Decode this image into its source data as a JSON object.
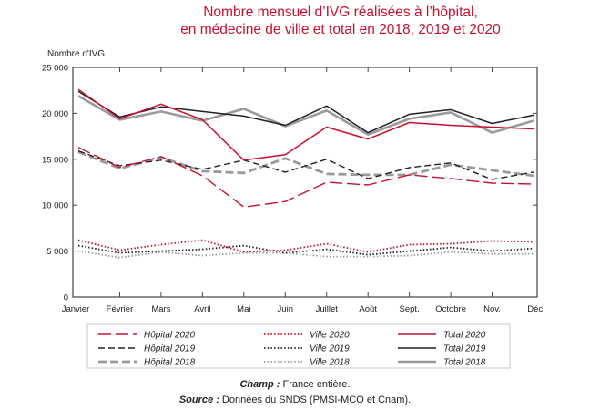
{
  "chart_data": {
    "type": "line",
    "title": [
      "Nombre mensuel d’IVG réalisées à l’hôpital,",
      "en médecine de ville et total en 2018, 2019 et 2020"
    ],
    "ylabel": "Nombre d'IVG",
    "xlabel": "",
    "ylim": [
      0,
      25000
    ],
    "yticks": [
      0,
      5000,
      10000,
      15000,
      20000,
      25000
    ],
    "ytick_labels": [
      "0",
      "5 000",
      "10 000",
      "15 000",
      "20 000",
      "25 000"
    ],
    "categories": [
      "Janvier",
      "Février",
      "Mars",
      "Avril",
      "Mai",
      "Juin",
      "Juillet",
      "Août",
      "Sept.",
      "Octobre",
      "Nov.",
      "Déc."
    ],
    "grid": false,
    "legend_position": "bottom",
    "series": [
      {
        "name": "Hôpital 2020",
        "color": "#c8102e",
        "style": "longdash",
        "values": [
          16300,
          14100,
          15300,
          13200,
          9800,
          10400,
          12500,
          12200,
          13300,
          12900,
          12400,
          12300
        ]
      },
      {
        "name": "Ville 2020",
        "color": "#c8102e",
        "style": "dotted",
        "values": [
          6200,
          5100,
          5700,
          6200,
          4900,
          5100,
          5800,
          4900,
          5700,
          5800,
          6100,
          6000
        ]
      },
      {
        "name": "Total 2020",
        "color": "#c8102e",
        "style": "solid",
        "values": [
          22600,
          19400,
          21000,
          19300,
          14900,
          15500,
          18500,
          17200,
          19000,
          18700,
          18500,
          18300
        ]
      },
      {
        "name": "Hôpital 2019",
        "color": "#222222",
        "style": "dash",
        "values": [
          15900,
          14300,
          14900,
          13900,
          14900,
          13600,
          15000,
          12900,
          14100,
          14600,
          12800,
          13600
        ]
      },
      {
        "name": "Ville 2019",
        "color": "#222222",
        "style": "dotted",
        "values": [
          5600,
          4800,
          5000,
          5200,
          5600,
          4800,
          5200,
          4600,
          5000,
          5400,
          5000,
          5300
        ]
      },
      {
        "name": "Total 2019",
        "color": "#222222",
        "style": "solid",
        "values": [
          22400,
          19600,
          20700,
          20200,
          19700,
          18700,
          20800,
          17900,
          19900,
          20400,
          18900,
          19800
        ]
      },
      {
        "name": "Hôpital 2018",
        "color": "#9a9a9a",
        "style": "thickdash",
        "values": [
          15800,
          14000,
          15200,
          13700,
          13500,
          15100,
          13400,
          13300,
          13300,
          14400,
          13800,
          13200
        ]
      },
      {
        "name": "Ville 2018",
        "color": "#9a9a9a",
        "style": "dotted",
        "values": [
          5000,
          4300,
          4900,
          4500,
          4800,
          4800,
          4400,
          4400,
          4500,
          4900,
          4700,
          4700
        ]
      },
      {
        "name": "Total 2018",
        "color": "#9a9a9a",
        "style": "thicksolid",
        "values": [
          21900,
          19300,
          20200,
          19200,
          20500,
          18600,
          20300,
          17700,
          19400,
          20100,
          17900,
          19200
        ]
      }
    ]
  },
  "footer": {
    "champ_label": "Champ :",
    "champ_text": " France entière.",
    "source_label": "Source :",
    "source_text": " Données du SNDS (PMSI-MCO et Cnam)."
  }
}
